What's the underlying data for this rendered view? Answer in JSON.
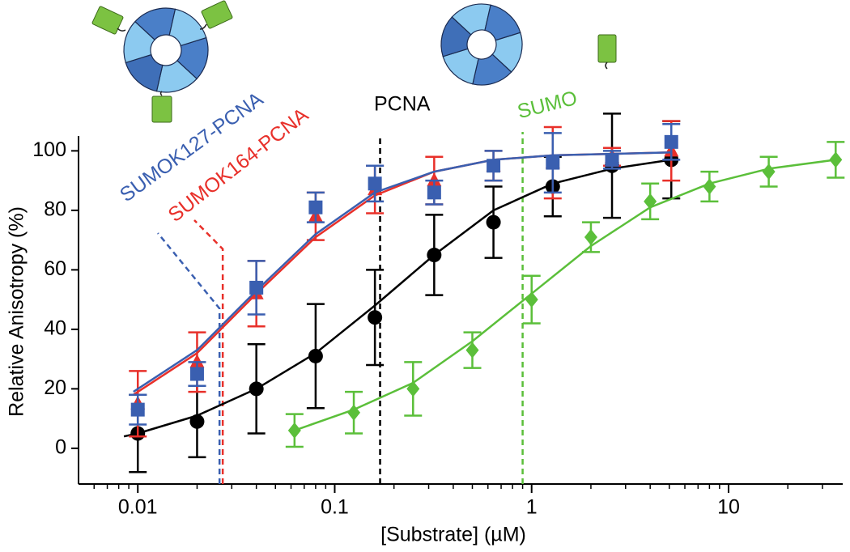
{
  "chart_data": {
    "type": "scatter",
    "xlabel": "[Substrate] (µM)",
    "ylabel": "Relative Anisotropy (%)",
    "log_x": true,
    "xlim": [
      0.005,
      38
    ],
    "ylim": [
      -12,
      105
    ],
    "xticks": [
      0.01,
      0.1,
      1,
      10
    ],
    "xminorticks": [
      0.006,
      0.007,
      0.008,
      0.009,
      0.02,
      0.03,
      0.04,
      0.05,
      0.06,
      0.07,
      0.08,
      0.09,
      0.2,
      0.3,
      0.4,
      0.5,
      0.6,
      0.7,
      0.8,
      0.9,
      2,
      3,
      4,
      5,
      6,
      7,
      8,
      9,
      20,
      30
    ],
    "yticks": [
      0,
      20,
      40,
      60,
      80,
      100
    ],
    "series": [
      {
        "name": "PCNA",
        "color": "#000000",
        "marker": "circle",
        "marker_x": 0.17,
        "x": [
          0.01,
          0.02,
          0.04,
          0.08,
          0.16,
          0.32,
          0.64,
          1.28,
          2.56,
          5.12
        ],
        "values": [
          5,
          9,
          20,
          31,
          44,
          65,
          76,
          88,
          95,
          97
        ],
        "errors": [
          13,
          12,
          15,
          17.5,
          16,
          13.5,
          12,
          10,
          17.5,
          13
        ],
        "fit": {
          "x": [
            0.0085,
            0.01,
            0.02,
            0.04,
            0.08,
            0.16,
            0.32,
            0.64,
            1.28,
            2.56,
            5.12
          ],
          "values": [
            4,
            5,
            11,
            20,
            32,
            48,
            65,
            80,
            89,
            94,
            97
          ]
        }
      },
      {
        "name": "SUMO",
        "color": "#5bbf3a",
        "marker": "diamond",
        "marker_x": 0.9,
        "x": [
          0.0625,
          0.125,
          0.25,
          0.5,
          1,
          2,
          4,
          8,
          16,
          35
        ],
        "values": [
          6,
          12,
          20,
          33,
          50,
          71,
          83,
          88,
          93,
          97
        ],
        "errors": [
          5.5,
          7,
          9,
          6,
          8,
          5,
          6,
          5,
          5,
          6
        ],
        "fit": {
          "x": [
            0.0625,
            0.125,
            0.25,
            0.5,
            1,
            2,
            4,
            8,
            16,
            35
          ],
          "values": [
            6,
            13,
            22,
            36,
            52,
            68,
            81,
            89,
            94,
            97
          ]
        }
      },
      {
        "name": "SUMOK164-PCNA",
        "color": "#e8302a",
        "marker": "triangle",
        "marker_x": 0.027,
        "x": [
          0.01,
          0.02,
          0.04,
          0.08,
          0.16,
          0.32,
          0.64,
          1.28,
          2.56,
          5.12
        ],
        "values": [
          15,
          29,
          52,
          78,
          87,
          90,
          95,
          96,
          98,
          100
        ],
        "errors": [
          11,
          10,
          11,
          8,
          8,
          8,
          5,
          12,
          3,
          10
        ],
        "fit": {
          "x": [
            0.0095,
            0.02,
            0.04,
            0.08,
            0.16,
            0.32,
            0.64,
            1.28,
            2.56,
            5.12
          ],
          "values": [
            18,
            32,
            52,
            71,
            85,
            93,
            97,
            98.5,
            99,
            99.5
          ]
        }
      },
      {
        "name": "SUMOK127-PCNA",
        "color": "#3a5fb0",
        "marker": "square",
        "marker_x": 0.026,
        "x": [
          0.01,
          0.02,
          0.04,
          0.08,
          0.16,
          0.32,
          0.64,
          1.28,
          2.56,
          5.12
        ],
        "values": [
          13,
          25,
          54,
          81,
          89,
          86,
          95,
          96,
          97,
          103
        ],
        "errors": [
          5,
          4,
          9,
          5,
          6,
          4,
          5,
          10,
          3,
          6
        ],
        "fit": {
          "x": [
            0.0095,
            0.02,
            0.04,
            0.08,
            0.16,
            0.32,
            0.64,
            1.28,
            2.56,
            5.12
          ],
          "values": [
            19,
            33,
            53,
            72,
            86,
            93,
            97,
            98.5,
            99,
            99.5
          ]
        }
      }
    ]
  }
}
